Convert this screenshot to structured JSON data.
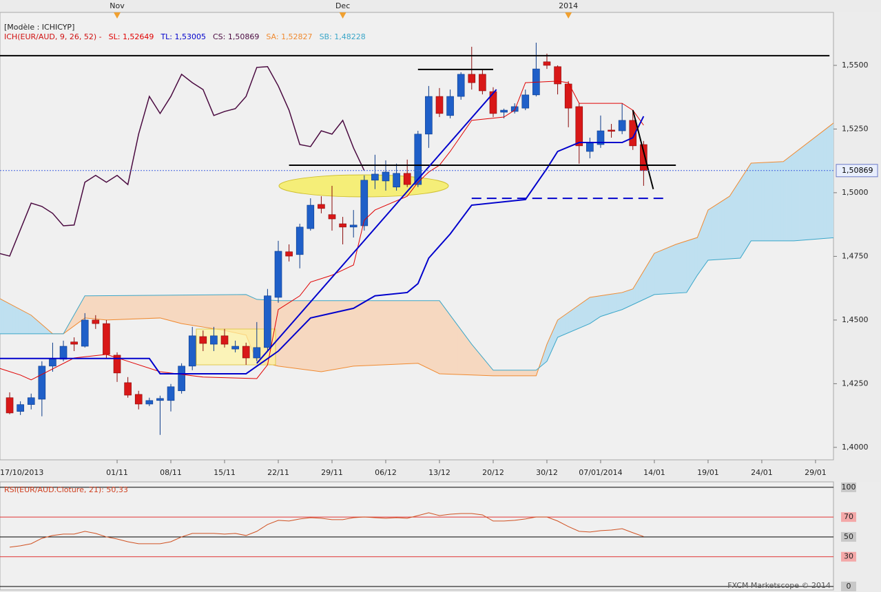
{
  "chart_data": [
    {
      "type": "candlestick",
      "template": "[Modèle : ICHICYP]",
      "indicator": "ICH(EUR/AUD, 9, 26, 52) -",
      "indicator_color": "#d01010",
      "up_color": "#1f5fc8",
      "down_color": "#d81818",
      "xlim": [
        -10.9,
        66.67
      ],
      "ylim": [
        1.3951,
        1.5708
      ],
      "xticks": [
        {
          "value": -11,
          "label": "17/10/2013"
        },
        {
          "value": 0,
          "label": "01/11"
        },
        {
          "value": 5,
          "label": "08/11"
        },
        {
          "value": 10,
          "label": "15/11"
        },
        {
          "value": 15,
          "label": "22/11"
        },
        {
          "value": 20,
          "label": "29/11"
        },
        {
          "value": 25,
          "label": "06/12"
        },
        {
          "value": 30,
          "label": "13/12"
        },
        {
          "value": 35,
          "label": "20/12"
        },
        {
          "value": 40,
          "label": "30/12"
        },
        {
          "value": 45,
          "label": "07/01/2014"
        },
        {
          "value": 50,
          "label": "14/01"
        },
        {
          "value": 55,
          "label": "19/01"
        },
        {
          "value": 60,
          "label": "24/01"
        },
        {
          "value": 65,
          "label": "29/01"
        }
      ],
      "x2ticks": [
        {
          "value": 0,
          "label": "Nov"
        },
        {
          "value": 21,
          "label": "Dec"
        },
        {
          "value": 42,
          "label": "2014"
        }
      ],
      "yticks": [
        {
          "value": 1.4,
          "label": "1,4000"
        },
        {
          "value": 1.425,
          "label": "1,4250"
        },
        {
          "value": 1.45,
          "label": "1,4500"
        },
        {
          "value": 1.475,
          "label": "1,4750"
        },
        {
          "value": 1.5,
          "label": "1,5000"
        },
        {
          "value": 1.525,
          "label": "1,5250"
        },
        {
          "value": 1.55,
          "label": "1,5500"
        }
      ],
      "x": [
        -10,
        -9,
        -8,
        -7,
        -6,
        -5,
        -4,
        -3,
        -2,
        -1,
        0,
        1,
        2,
        3,
        4,
        5,
        6,
        7,
        8,
        9,
        10,
        11,
        12,
        13,
        14,
        15,
        16,
        17,
        18,
        19,
        20,
        21,
        22,
        23,
        24,
        25,
        26,
        27,
        28,
        29,
        30,
        31,
        32,
        33,
        34,
        35,
        36,
        37,
        38,
        39,
        40,
        41,
        42,
        43,
        44,
        45,
        46,
        47,
        48,
        49
      ],
      "open": [
        1.4195,
        1.4141,
        1.4168,
        1.4189,
        1.4319,
        1.4346,
        1.4414,
        1.4397,
        1.45,
        1.4486,
        1.4362,
        1.4254,
        1.4208,
        1.417,
        1.4184,
        1.4184,
        1.4222,
        1.4319,
        1.4435,
        1.4405,
        1.4438,
        1.4386,
        1.4397,
        1.4351,
        1.4392,
        1.4589,
        1.4768,
        1.4757,
        1.4859,
        1.4954,
        1.4914,
        1.4878,
        1.4865,
        1.487,
        1.5049,
        1.5046,
        1.5022,
        1.5076,
        1.5032,
        1.523,
        1.5378,
        1.5303,
        1.5378,
        1.5465,
        1.5465,
        1.5397,
        1.5316,
        1.5319,
        1.5332,
        1.5384,
        1.5514,
        1.5495,
        1.5427,
        1.5338,
        1.5162,
        1.5189,
        1.5246,
        1.5243,
        1.5284,
        1.5189
      ],
      "high": [
        1.4216,
        1.4181,
        1.4211,
        1.4338,
        1.4411,
        1.4419,
        1.4432,
        1.4527,
        1.4519,
        1.45,
        1.4373,
        1.4276,
        1.4222,
        1.4195,
        1.4203,
        1.4249,
        1.433,
        1.4473,
        1.4459,
        1.4473,
        1.4465,
        1.4419,
        1.4411,
        1.4492,
        1.4622,
        1.4811,
        1.4797,
        1.4878,
        1.4978,
        1.4986,
        1.5027,
        1.4905,
        1.4932,
        1.5068,
        1.5149,
        1.5127,
        1.5114,
        1.513,
        1.5243,
        1.5419,
        1.5411,
        1.5405,
        1.5473,
        1.5573,
        1.5486,
        1.5414,
        1.533,
        1.5351,
        1.5405,
        1.5589,
        1.5546,
        1.55,
        1.5438,
        1.5351,
        1.5216,
        1.5303,
        1.527,
        1.5351,
        1.5324,
        1.5203
      ],
      "low": [
        1.413,
        1.4127,
        1.4149,
        1.4122,
        1.4297,
        1.4338,
        1.4378,
        1.4392,
        1.4465,
        1.4351,
        1.4257,
        1.4195,
        1.4149,
        1.4162,
        1.4049,
        1.4141,
        1.4211,
        1.4303,
        1.4378,
        1.4378,
        1.4392,
        1.4373,
        1.4324,
        1.4338,
        1.4378,
        1.4568,
        1.473,
        1.4703,
        1.4851,
        1.4919,
        1.4851,
        1.4797,
        1.4824,
        1.4851,
        1.5014,
        1.5008,
        1.5008,
        1.5022,
        1.5022,
        1.5176,
        1.5297,
        1.5292,
        1.5365,
        1.5405,
        1.5386,
        1.5297,
        1.5292,
        1.5311,
        1.5324,
        1.5378,
        1.5486,
        1.5386,
        1.5257,
        1.5114,
        1.5135,
        1.5176,
        1.5216,
        1.523,
        1.5168,
        1.5027
      ],
      "close": [
        1.4135,
        1.4168,
        1.4195,
        1.4319,
        1.4346,
        1.4397,
        1.4405,
        1.45,
        1.4486,
        1.4365,
        1.4292,
        1.4205,
        1.417,
        1.4184,
        1.4192,
        1.4238,
        1.4319,
        1.4438,
        1.4408,
        1.4438,
        1.4405,
        1.4397,
        1.4351,
        1.4392,
        1.4595,
        1.477,
        1.4751,
        1.4865,
        1.4951,
        1.4938,
        1.4897,
        1.4865,
        1.4873,
        1.5049,
        1.5073,
        1.5081,
        1.5076,
        1.5032,
        1.523,
        1.5378,
        1.5311,
        1.5378,
        1.5465,
        1.5432,
        1.54,
        1.5311,
        1.5324,
        1.5338,
        1.5384,
        1.5486,
        1.55,
        1.5427,
        1.5332,
        1.5184,
        1.5195,
        1.5243,
        1.5241,
        1.5284,
        1.5184,
        1.50869
      ],
      "lines": [
        {
          "name": "SL: 1,52649",
          "color": "#e00000",
          "width": 1,
          "layer": "front",
          "x": [
            -11,
            -9,
            -8,
            -4,
            -1,
            1,
            4,
            8,
            13,
            14,
            15,
            17,
            18,
            20,
            22,
            23,
            24,
            27,
            28,
            29,
            30,
            31,
            33,
            36,
            37,
            38,
            41,
            42,
            43,
            47,
            48,
            49
          ],
          "values": [
            1.4311,
            1.4284,
            1.4265,
            1.4351,
            1.4365,
            1.4338,
            1.4297,
            1.4276,
            1.427,
            1.4324,
            1.4541,
            1.4595,
            1.4649,
            1.4676,
            1.4716,
            1.4892,
            1.4932,
            1.4986,
            1.5041,
            1.5081,
            1.5108,
            1.5162,
            1.5284,
            1.5297,
            1.5324,
            1.5432,
            1.5438,
            1.5432,
            1.5351,
            1.5351,
            1.5324,
            1.5265
          ]
        },
        {
          "name": "TL: 1,53005",
          "color": "#0000cc",
          "width": 2,
          "layer": "front",
          "x": [
            -11,
            3,
            4,
            12,
            15,
            18,
            20,
            22,
            24,
            27,
            28,
            29,
            31,
            33,
            38,
            40,
            41,
            43,
            47,
            48,
            49
          ],
          "values": [
            1.4349,
            1.4349,
            1.4289,
            1.4289,
            1.4378,
            1.4508,
            1.4527,
            1.4546,
            1.4595,
            1.4608,
            1.4643,
            1.4743,
            1.4838,
            1.4951,
            1.4973,
            1.5095,
            1.5162,
            1.5197,
            1.5197,
            1.5216,
            1.53
          ]
        },
        {
          "name": "CS: 1,50869",
          "color": "#4a0a40",
          "width": 1.5,
          "layer": "front",
          "x": [
            -11,
            -10,
            -8,
            -7,
            -6,
            -5,
            -4,
            -3,
            -2,
            -1,
            0,
            1,
            2,
            3,
            4,
            5,
            6,
            7,
            8,
            9,
            10,
            11,
            12,
            13,
            14,
            15,
            16,
            17,
            18,
            19,
            20,
            21,
            22,
            23
          ],
          "values": [
            1.4762,
            1.4751,
            1.4959,
            1.4946,
            1.4919,
            1.487,
            1.4873,
            1.5041,
            1.5068,
            1.5041,
            1.5068,
            1.5032,
            1.523,
            1.5378,
            1.5311,
            1.5378,
            1.5465,
            1.5432,
            1.5405,
            1.5303,
            1.5319,
            1.533,
            1.5378,
            1.5492,
            1.5495,
            1.5419,
            1.5324,
            1.5189,
            1.5181,
            1.5243,
            1.523,
            1.5284,
            1.5176,
            1.50869
          ]
        },
        {
          "name": "SA: 1,52827",
          "color": "#f08a30",
          "width": 1,
          "layer": "back",
          "x": [
            -11,
            -8,
            -6,
            -5,
            -3,
            -1,
            4,
            6,
            10,
            12,
            13,
            15,
            19,
            22,
            28,
            30,
            35,
            39,
            40,
            41,
            44,
            47,
            48,
            50,
            52,
            54,
            55,
            57,
            59,
            62,
            67
          ],
          "values": [
            1.4586,
            1.4519,
            1.4446,
            1.4446,
            1.4508,
            1.45,
            1.4508,
            1.4486,
            1.4459,
            1.4441,
            1.4338,
            1.4319,
            1.4297,
            1.4319,
            1.433,
            1.4289,
            1.4281,
            1.4281,
            1.4405,
            1.45,
            1.4589,
            1.4608,
            1.4622,
            1.4762,
            1.4797,
            1.4824,
            1.4932,
            1.4986,
            1.5116,
            1.5122,
            1.5284
          ]
        },
        {
          "name": "SB: 1,48228",
          "color": "#3aa6c8",
          "width": 1,
          "layer": "back",
          "x": [
            -11,
            -5,
            -3,
            12,
            13,
            15,
            30,
            33,
            35,
            39,
            40,
            41,
            44,
            45,
            47,
            50,
            53,
            54,
            55,
            58,
            59,
            63,
            67
          ],
          "values": [
            1.4446,
            1.4446,
            1.4595,
            1.46,
            1.4581,
            1.4576,
            1.4576,
            1.4405,
            1.4303,
            1.4303,
            1.4338,
            1.4432,
            1.4486,
            1.4514,
            1.4541,
            1.46,
            1.4608,
            1.4676,
            1.4735,
            1.4743,
            1.4811,
            1.4811,
            1.4824
          ]
        }
      ],
      "cloud_colors": {
        "up": "#bfe0f0",
        "down": "#f6d8c0"
      },
      "drawings": [
        {
          "x": [
            -10.9,
            66.3
          ],
          "values": [
            1.5538,
            1.5538
          ],
          "color": "#000000",
          "width": 2
        },
        {
          "x": [
            28,
            35
          ],
          "values": [
            1.5484,
            1.5484
          ],
          "color": "#000000",
          "width": 2
        },
        {
          "x": [
            16,
            52
          ],
          "values": [
            1.5108,
            1.5108
          ],
          "color": "#000000",
          "width": 2
        },
        {
          "x": [
            33,
            51
          ],
          "values": [
            1.4978,
            1.4978
          ],
          "color": "#0000cc",
          "width": 2,
          "dash": true
        },
        {
          "x": [
            13,
            35.3
          ],
          "values": [
            1.433,
            1.5405
          ],
          "color": "#0000cc",
          "width": 2
        },
        {
          "x": [
            48,
            49.9
          ],
          "values": [
            1.5324,
            1.5014
          ],
          "color": "#000000",
          "width": 2
        }
      ],
      "last_price": {
        "value": 1.50869,
        "label": "1,50869"
      }
    },
    {
      "type": "line",
      "title": "RSI(EUR/AUD.Cloture, 21): 50,33",
      "title_color": "#d04020",
      "xlim": [
        -10.9,
        66.67
      ],
      "ylim": [
        -3.5,
        105.5
      ],
      "yticks": [
        0,
        30,
        50,
        70,
        100
      ],
      "level_colors": [
        "#000000",
        "#e03030",
        "#000000",
        "#e03030",
        "#000000"
      ],
      "x": [
        -10,
        -9,
        -8,
        -7,
        -6,
        -5,
        -4,
        -3,
        -2,
        -1,
        0,
        1,
        2,
        3,
        4,
        5,
        6,
        7,
        8,
        9,
        10,
        11,
        12,
        13,
        14,
        15,
        16,
        17,
        18,
        19,
        20,
        21,
        22,
        23,
        24,
        25,
        26,
        27,
        28,
        29,
        30,
        31,
        32,
        33,
        34,
        35,
        36,
        37,
        38,
        39,
        40,
        41,
        42,
        43,
        44,
        45,
        46,
        47,
        48,
        49
      ],
      "series": [
        {
          "color": "#d05020",
          "values": [
            39.6,
            41.0,
            43.1,
            48.6,
            51.4,
            52.8,
            52.8,
            55.6,
            53.5,
            50.0,
            47.9,
            45.1,
            43.1,
            43.1,
            43.1,
            45.1,
            50.0,
            53.5,
            53.5,
            53.5,
            52.8,
            53.5,
            51.4,
            55.6,
            62.5,
            66.7,
            66.0,
            68.1,
            69.4,
            68.8,
            67.4,
            67.4,
            69.4,
            70.1,
            69.4,
            68.8,
            69.4,
            68.8,
            71.5,
            74.3,
            71.5,
            72.9,
            73.6,
            73.6,
            72.2,
            66.0,
            66.0,
            66.7,
            68.1,
            70.1,
            70.1,
            66.0,
            60.4,
            55.6,
            54.9,
            56.3,
            56.9,
            58.3,
            54.2,
            50.33
          ]
        }
      ]
    }
  ],
  "footer": "FXCM Marketscope © 2014"
}
